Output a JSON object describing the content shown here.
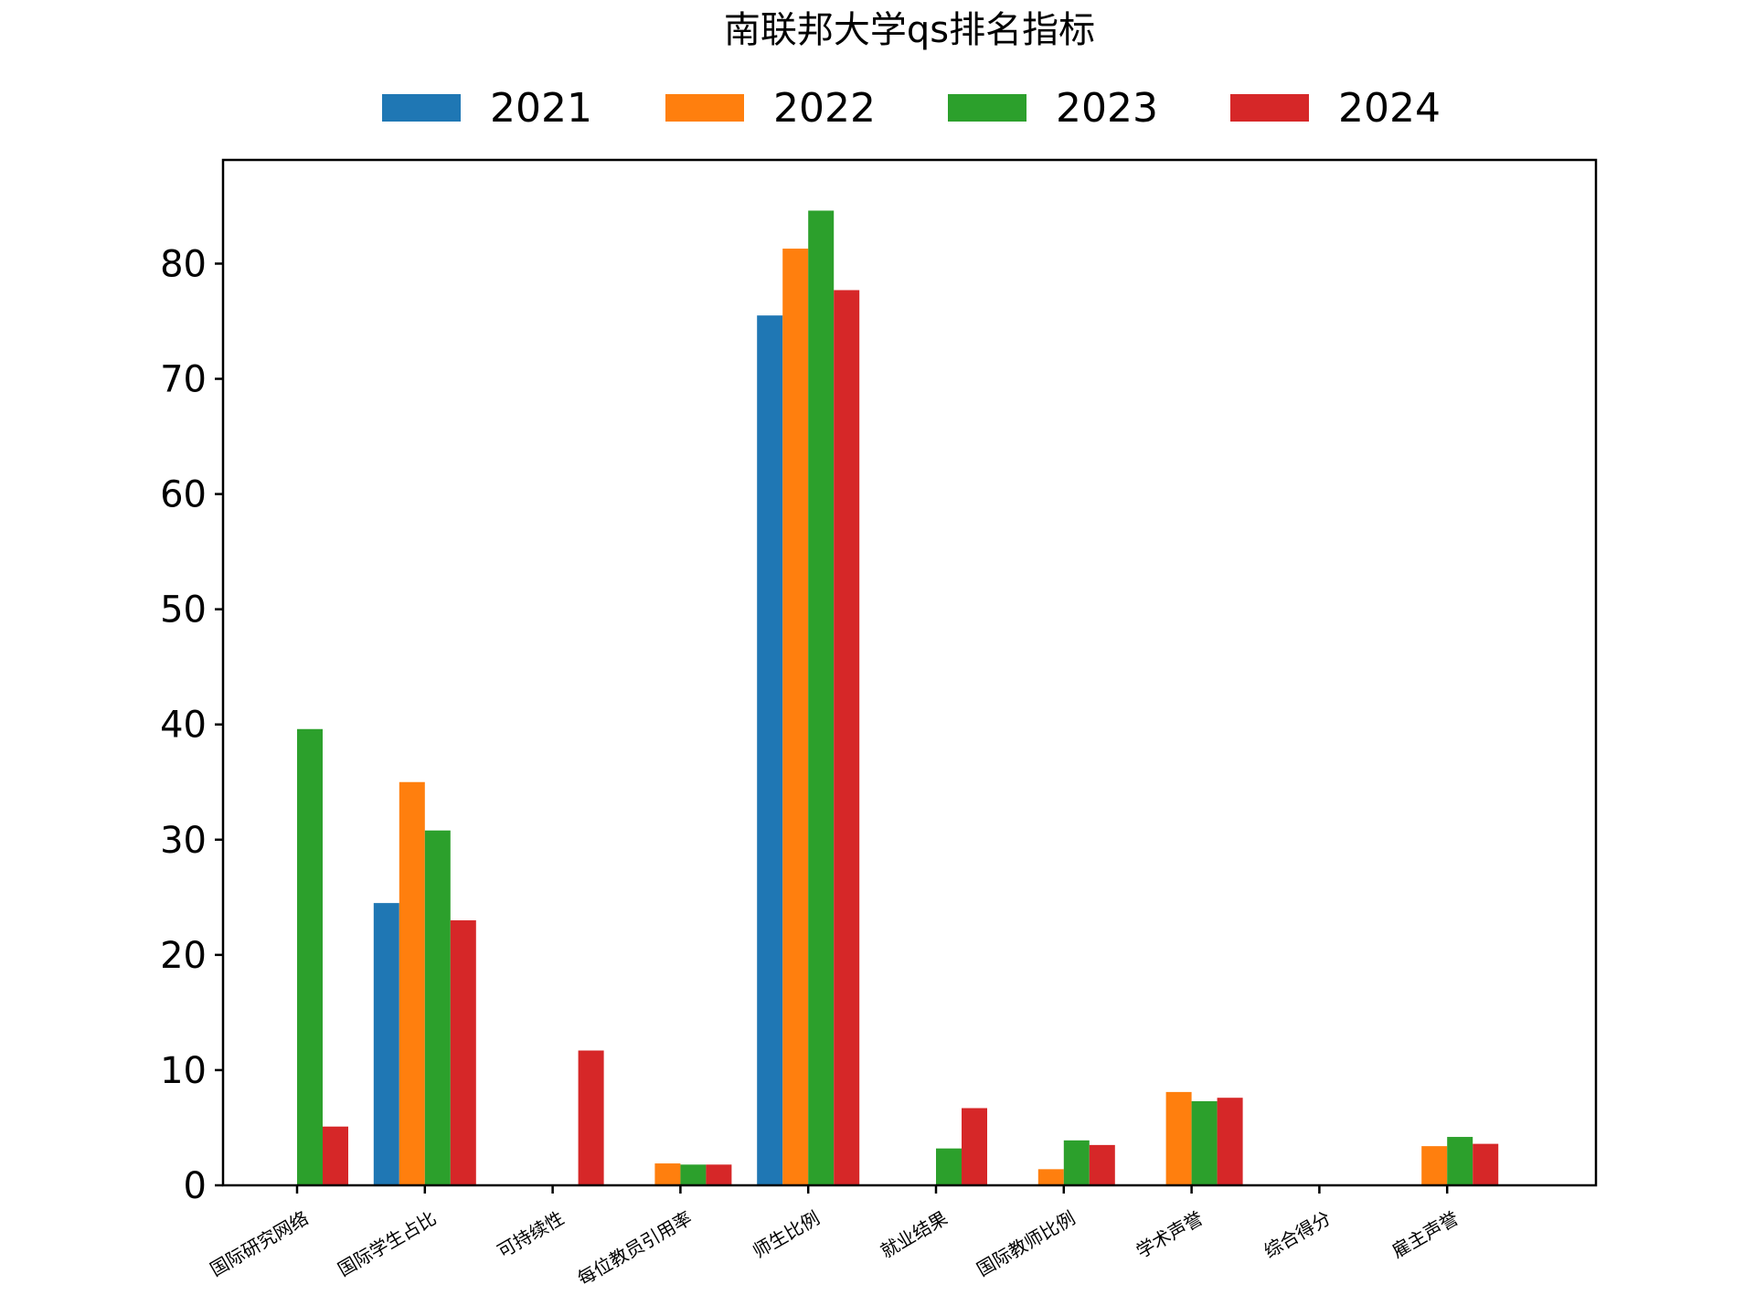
{
  "chart_data": {
    "type": "bar",
    "title": "南联邦大学qs排名指标",
    "xlabel": "",
    "ylabel": "",
    "ylim": [
      0,
      89
    ],
    "yticks": [
      0,
      10,
      20,
      30,
      40,
      50,
      60,
      70,
      80
    ],
    "legend_position": "top-center",
    "grid": false,
    "categories": [
      "国际研究网络",
      "国际学生占比",
      "可持续性",
      "每位教员引用率",
      "师生比例",
      "就业结果",
      "国际教师比例",
      "学术声誉",
      "综合得分",
      "雇主声誉"
    ],
    "series": [
      {
        "name": "2021",
        "color": "#1f77b4",
        "values": [
          null,
          24.5,
          null,
          null,
          75.5,
          null,
          null,
          null,
          null,
          null
        ]
      },
      {
        "name": "2022",
        "color": "#ff7f0e",
        "values": [
          null,
          35.0,
          null,
          1.9,
          81.3,
          null,
          1.4,
          8.1,
          null,
          3.4
        ]
      },
      {
        "name": "2023",
        "color": "#2ca02c",
        "values": [
          39.6,
          30.8,
          null,
          1.8,
          84.6,
          3.2,
          3.9,
          7.3,
          null,
          4.2
        ]
      },
      {
        "name": "2024",
        "color": "#d62728",
        "values": [
          5.1,
          23.0,
          11.7,
          1.8,
          77.7,
          6.7,
          3.5,
          7.6,
          null,
          3.6
        ]
      }
    ]
  }
}
